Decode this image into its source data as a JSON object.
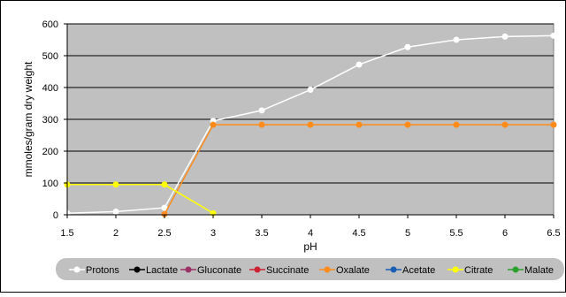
{
  "chart_data": {
    "type": "line",
    "title": "",
    "xlabel": "pH",
    "ylabel": "mmoles/gram dry weight",
    "x": [
      1.5,
      2,
      2.5,
      3,
      3.5,
      4,
      4.5,
      5,
      5.5,
      6,
      6.5
    ],
    "x_tick_labels": [
      "1.5",
      "2",
      "2.5",
      "3",
      "3.5",
      "4",
      "4.5",
      "5",
      "5.5",
      "6",
      "6.5"
    ],
    "xlim": [
      1.5,
      6.5
    ],
    "ylim": [
      0,
      600
    ],
    "y_ticks": [
      0,
      100,
      200,
      300,
      400,
      500,
      600
    ],
    "y_tick_labels": [
      "0",
      "100",
      "200",
      "300",
      "400",
      "500",
      "600"
    ],
    "grid": true,
    "plot_background": "#c0c0c0",
    "legend_position": "bottom",
    "series": [
      {
        "name": "Protons",
        "color": "#ffffff",
        "values": [
          5,
          10,
          22,
          295,
          328,
          393,
          472,
          527,
          550,
          560,
          563
        ]
      },
      {
        "name": "Lactate",
        "color": "#000000",
        "values": [
          null,
          null,
          null,
          null,
          null,
          null,
          null,
          null,
          null,
          null,
          null
        ]
      },
      {
        "name": "Gluconate",
        "color": "#993366",
        "values": [
          null,
          null,
          null,
          null,
          null,
          null,
          null,
          null,
          null,
          null,
          null
        ]
      },
      {
        "name": "Succinate",
        "color": "#cc2233",
        "values": [
          null,
          null,
          null,
          null,
          null,
          null,
          null,
          null,
          null,
          null,
          null
        ]
      },
      {
        "name": "Oxalate",
        "color": "#ff8c1a",
        "values": [
          null,
          null,
          2,
          283,
          283,
          283,
          283,
          283,
          283,
          283,
          283
        ]
      },
      {
        "name": "Acetate",
        "color": "#1a5fb4",
        "values": [
          null,
          null,
          null,
          null,
          null,
          null,
          null,
          null,
          null,
          null,
          null
        ]
      },
      {
        "name": "Citrate",
        "color": "#ffff00",
        "values": [
          95,
          95,
          95,
          5,
          null,
          null,
          null,
          null,
          null,
          null,
          null
        ]
      },
      {
        "name": "Malate",
        "color": "#2ca02c",
        "values": [
          null,
          null,
          null,
          null,
          null,
          null,
          null,
          null,
          null,
          null,
          null
        ]
      }
    ]
  }
}
